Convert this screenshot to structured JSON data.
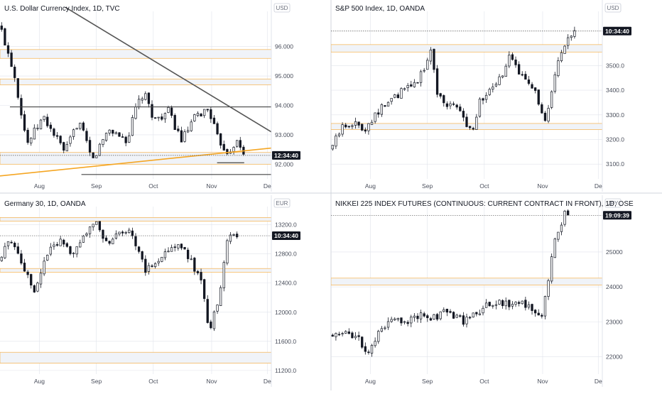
{
  "colors": {
    "candle": "#131722",
    "zone_fill": "#f0f3f8",
    "zone_border": "#f5b04a",
    "orange_line": "#f5a623",
    "grid_line": "#e0e3eb",
    "price_box": "#131722"
  },
  "chart_data": [
    {
      "type": "candlestick",
      "title": "U.S. Dollar Currency Index, 1D, TVC",
      "unit": "USD",
      "current_price": "12:34:40",
      "ylim": [
        91.5,
        97.2
      ],
      "yticks": [
        "96.000",
        "95.000",
        "94.000",
        "93.000",
        "92.000"
      ],
      "ytick_values": [
        96,
        95,
        94,
        93,
        92
      ],
      "xticks": [
        "Aug",
        "Sep",
        "Oct",
        "Nov",
        "De"
      ],
      "xtick_positions": [
        0.145,
        0.355,
        0.565,
        0.78,
        0.985
      ],
      "path": [
        [
          0,
          96.7
        ],
        [
          0.05,
          95.2
        ],
        [
          0.1,
          92.7
        ],
        [
          0.16,
          93.6
        ],
        [
          0.24,
          92.4
        ],
        [
          0.29,
          93.5
        ],
        [
          0.34,
          92.1
        ],
        [
          0.4,
          93.2
        ],
        [
          0.47,
          92.8
        ],
        [
          0.5,
          93.9
        ],
        [
          0.53,
          94.4
        ],
        [
          0.57,
          93.5
        ],
        [
          0.62,
          93.8
        ],
        [
          0.67,
          92.8
        ],
        [
          0.72,
          93.6
        ],
        [
          0.77,
          93.9
        ],
        [
          0.8,
          92.9
        ],
        [
          0.84,
          92.4
        ],
        [
          0.87,
          92.8
        ],
        [
          0.9,
          92.3
        ]
      ],
      "zones": [
        [
          95.6,
          95.9
        ],
        [
          94.7,
          94.9
        ],
        [
          92.0,
          92.4
        ]
      ],
      "horizontal_lines": [
        93.95
      ],
      "short_lines": [
        {
          "y": 91.65,
          "x": [
            0.3,
            1.0
          ]
        },
        {
          "y": 92.05,
          "x": [
            0.8,
            0.9
          ]
        }
      ],
      "trend_lines": [
        {
          "from": [
            0.23,
            97.4
          ],
          "to": [
            1.0,
            93.1
          ],
          "color": "#555555"
        },
        {
          "from": [
            0.0,
            91.6
          ],
          "to": [
            1.0,
            92.55
          ],
          "color": "#f5a623"
        }
      ]
    },
    {
      "type": "candlestick",
      "title": "S&P 500 Index, 1D, OANDA",
      "unit": "USD",
      "current_price": "10:34:40",
      "ylim": [
        3040,
        3720
      ],
      "yticks": [
        "3500.0",
        "3400.0",
        "3300.0",
        "3200.0",
        "3100.0"
      ],
      "ytick_values": [
        3500,
        3400,
        3300,
        3200,
        3100
      ],
      "xticks": [
        "Aug",
        "Sep",
        "Oct",
        "Nov",
        "De"
      ],
      "xtick_positions": [
        0.145,
        0.355,
        0.565,
        0.78,
        0.985
      ],
      "path": [
        [
          0,
          3160
        ],
        [
          0.04,
          3250
        ],
        [
          0.08,
          3270
        ],
        [
          0.12,
          3240
        ],
        [
          0.16,
          3300
        ],
        [
          0.21,
          3350
        ],
        [
          0.27,
          3400
        ],
        [
          0.31,
          3430
        ],
        [
          0.35,
          3500
        ],
        [
          0.37,
          3570
        ],
        [
          0.39,
          3400
        ],
        [
          0.42,
          3340
        ],
        [
          0.45,
          3350
        ],
        [
          0.49,
          3280
        ],
        [
          0.52,
          3240
        ],
        [
          0.55,
          3360
        ],
        [
          0.58,
          3390
        ],
        [
          0.61,
          3420
        ],
        [
          0.64,
          3480
        ],
        [
          0.66,
          3540
        ],
        [
          0.69,
          3470
        ],
        [
          0.72,
          3460
        ],
        [
          0.75,
          3400
        ],
        [
          0.77,
          3320
        ],
        [
          0.79,
          3260
        ],
        [
          0.81,
          3370
        ],
        [
          0.84,
          3520
        ],
        [
          0.86,
          3570
        ],
        [
          0.88,
          3610
        ],
        [
          0.9,
          3640
        ]
      ],
      "zones": [
        [
          3555,
          3585
        ],
        [
          3240,
          3265
        ]
      ],
      "dotted_level": 3640
    },
    {
      "type": "candlestick",
      "title": "Germany 30, 1D, OANDA",
      "unit": "EUR",
      "current_price": "10:34:40",
      "ylim": [
        11150,
        13450
      ],
      "yticks": [
        "13200.0",
        "12800.0",
        "12400.0",
        "12000.0",
        "11600.0",
        "11200.0"
      ],
      "ytick_values": [
        13200,
        12800,
        12400,
        12000,
        11600,
        11200
      ],
      "xticks": [
        "Aug",
        "Sep",
        "Oct",
        "Nov",
        "De"
      ],
      "xtick_positions": [
        0.145,
        0.355,
        0.565,
        0.78,
        0.985
      ],
      "path": [
        [
          0,
          12700
        ],
        [
          0.03,
          13000
        ],
        [
          0.06,
          12900
        ],
        [
          0.1,
          12500
        ],
        [
          0.13,
          12300
        ],
        [
          0.18,
          12900
        ],
        [
          0.23,
          13000
        ],
        [
          0.27,
          12800
        ],
        [
          0.31,
          13100
        ],
        [
          0.36,
          13200
        ],
        [
          0.4,
          12900
        ],
        [
          0.44,
          13100
        ],
        [
          0.48,
          13150
        ],
        [
          0.51,
          12800
        ],
        [
          0.54,
          12550
        ],
        [
          0.58,
          12750
        ],
        [
          0.62,
          12800
        ],
        [
          0.66,
          13000
        ],
        [
          0.7,
          12700
        ],
        [
          0.74,
          12500
        ],
        [
          0.76,
          11950
        ],
        [
          0.77,
          11700
        ],
        [
          0.8,
          12100
        ],
        [
          0.82,
          12500
        ],
        [
          0.84,
          13050
        ],
        [
          0.86,
          13100
        ],
        [
          0.88,
          13050
        ]
      ],
      "zones": [
        [
          13250,
          13300
        ],
        [
          12550,
          12600
        ],
        [
          11300,
          11450
        ]
      ],
      "dotted_level": 13050
    },
    {
      "type": "candlestick",
      "title": "NIKKEI 225 INDEX FUTURES (CONTINUOUS: CURRENT CONTRACT IN FRONT), 1D, OSE",
      "unit": "JPY",
      "current_price": "19:09:39",
      "ylim": [
        21500,
        26300
      ],
      "yticks": [
        "25000",
        "24000",
        "23000",
        "22000"
      ],
      "ytick_values": [
        25000,
        24000,
        23000,
        22000
      ],
      "xticks": [
        "Aug",
        "Sep",
        "Oct",
        "Nov",
        "De"
      ],
      "xtick_positions": [
        0.145,
        0.355,
        0.565,
        0.78,
        0.985
      ],
      "path": [
        [
          0,
          22600
        ],
        [
          0.05,
          22800
        ],
        [
          0.1,
          22500
        ],
        [
          0.14,
          22100
        ],
        [
          0.18,
          22700
        ],
        [
          0.23,
          23100
        ],
        [
          0.29,
          23000
        ],
        [
          0.33,
          23200
        ],
        [
          0.38,
          23100
        ],
        [
          0.43,
          23300
        ],
        [
          0.49,
          23000
        ],
        [
          0.54,
          23300
        ],
        [
          0.6,
          23600
        ],
        [
          0.66,
          23500
        ],
        [
          0.7,
          23600
        ],
        [
          0.74,
          23400
        ],
        [
          0.76,
          23000
        ],
        [
          0.78,
          23300
        ],
        [
          0.8,
          24000
        ],
        [
          0.82,
          25200
        ],
        [
          0.84,
          25700
        ],
        [
          0.86,
          26100
        ],
        [
          0.88,
          26050
        ]
      ],
      "zones": [
        [
          24050,
          24250
        ]
      ],
      "dotted_level": 26050
    }
  ]
}
